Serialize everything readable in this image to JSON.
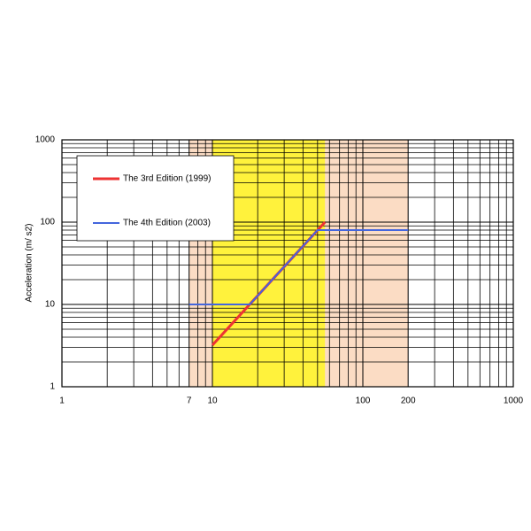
{
  "chart_data": {
    "type": "line",
    "y_label": "Acceleration  (m/ s2)",
    "xlog": true,
    "ylog": true,
    "grid": true,
    "xlim": [
      1,
      1000
    ],
    "ylim": [
      1,
      1000
    ],
    "xticks": [
      1,
      7,
      10,
      100,
      200,
      1000
    ],
    "yticks": [
      1,
      10,
      100,
      1000
    ],
    "xminor_ticks": [
      2,
      3,
      4,
      5,
      6,
      8,
      9,
      20,
      30,
      40,
      50,
      60,
      70,
      80,
      90,
      300,
      400,
      500,
      600,
      700,
      800,
      900
    ],
    "yminor_ticks": [
      2,
      3,
      4,
      5,
      6,
      7,
      8,
      9,
      20,
      30,
      40,
      50,
      60,
      70,
      80,
      90,
      200,
      300,
      400,
      500,
      600,
      700,
      800,
      900
    ],
    "bands": [
      {
        "from": 7,
        "to": 200,
        "color": "#fbdcc4"
      },
      {
        "from": 10,
        "to": 56,
        "color": "#fff23c"
      }
    ],
    "legend": "upper left",
    "series": [
      {
        "name": "The 3rd Edition (1999)",
        "color": "#ee3333",
        "x": [
          10,
          56
        ],
        "values": [
          3.2,
          100
        ]
      },
      {
        "name": "The 4th Edition (2003)",
        "color": "#4466dd",
        "x": [
          7,
          17.7,
          50,
          200
        ],
        "values": [
          10,
          10,
          80,
          80
        ]
      }
    ]
  }
}
